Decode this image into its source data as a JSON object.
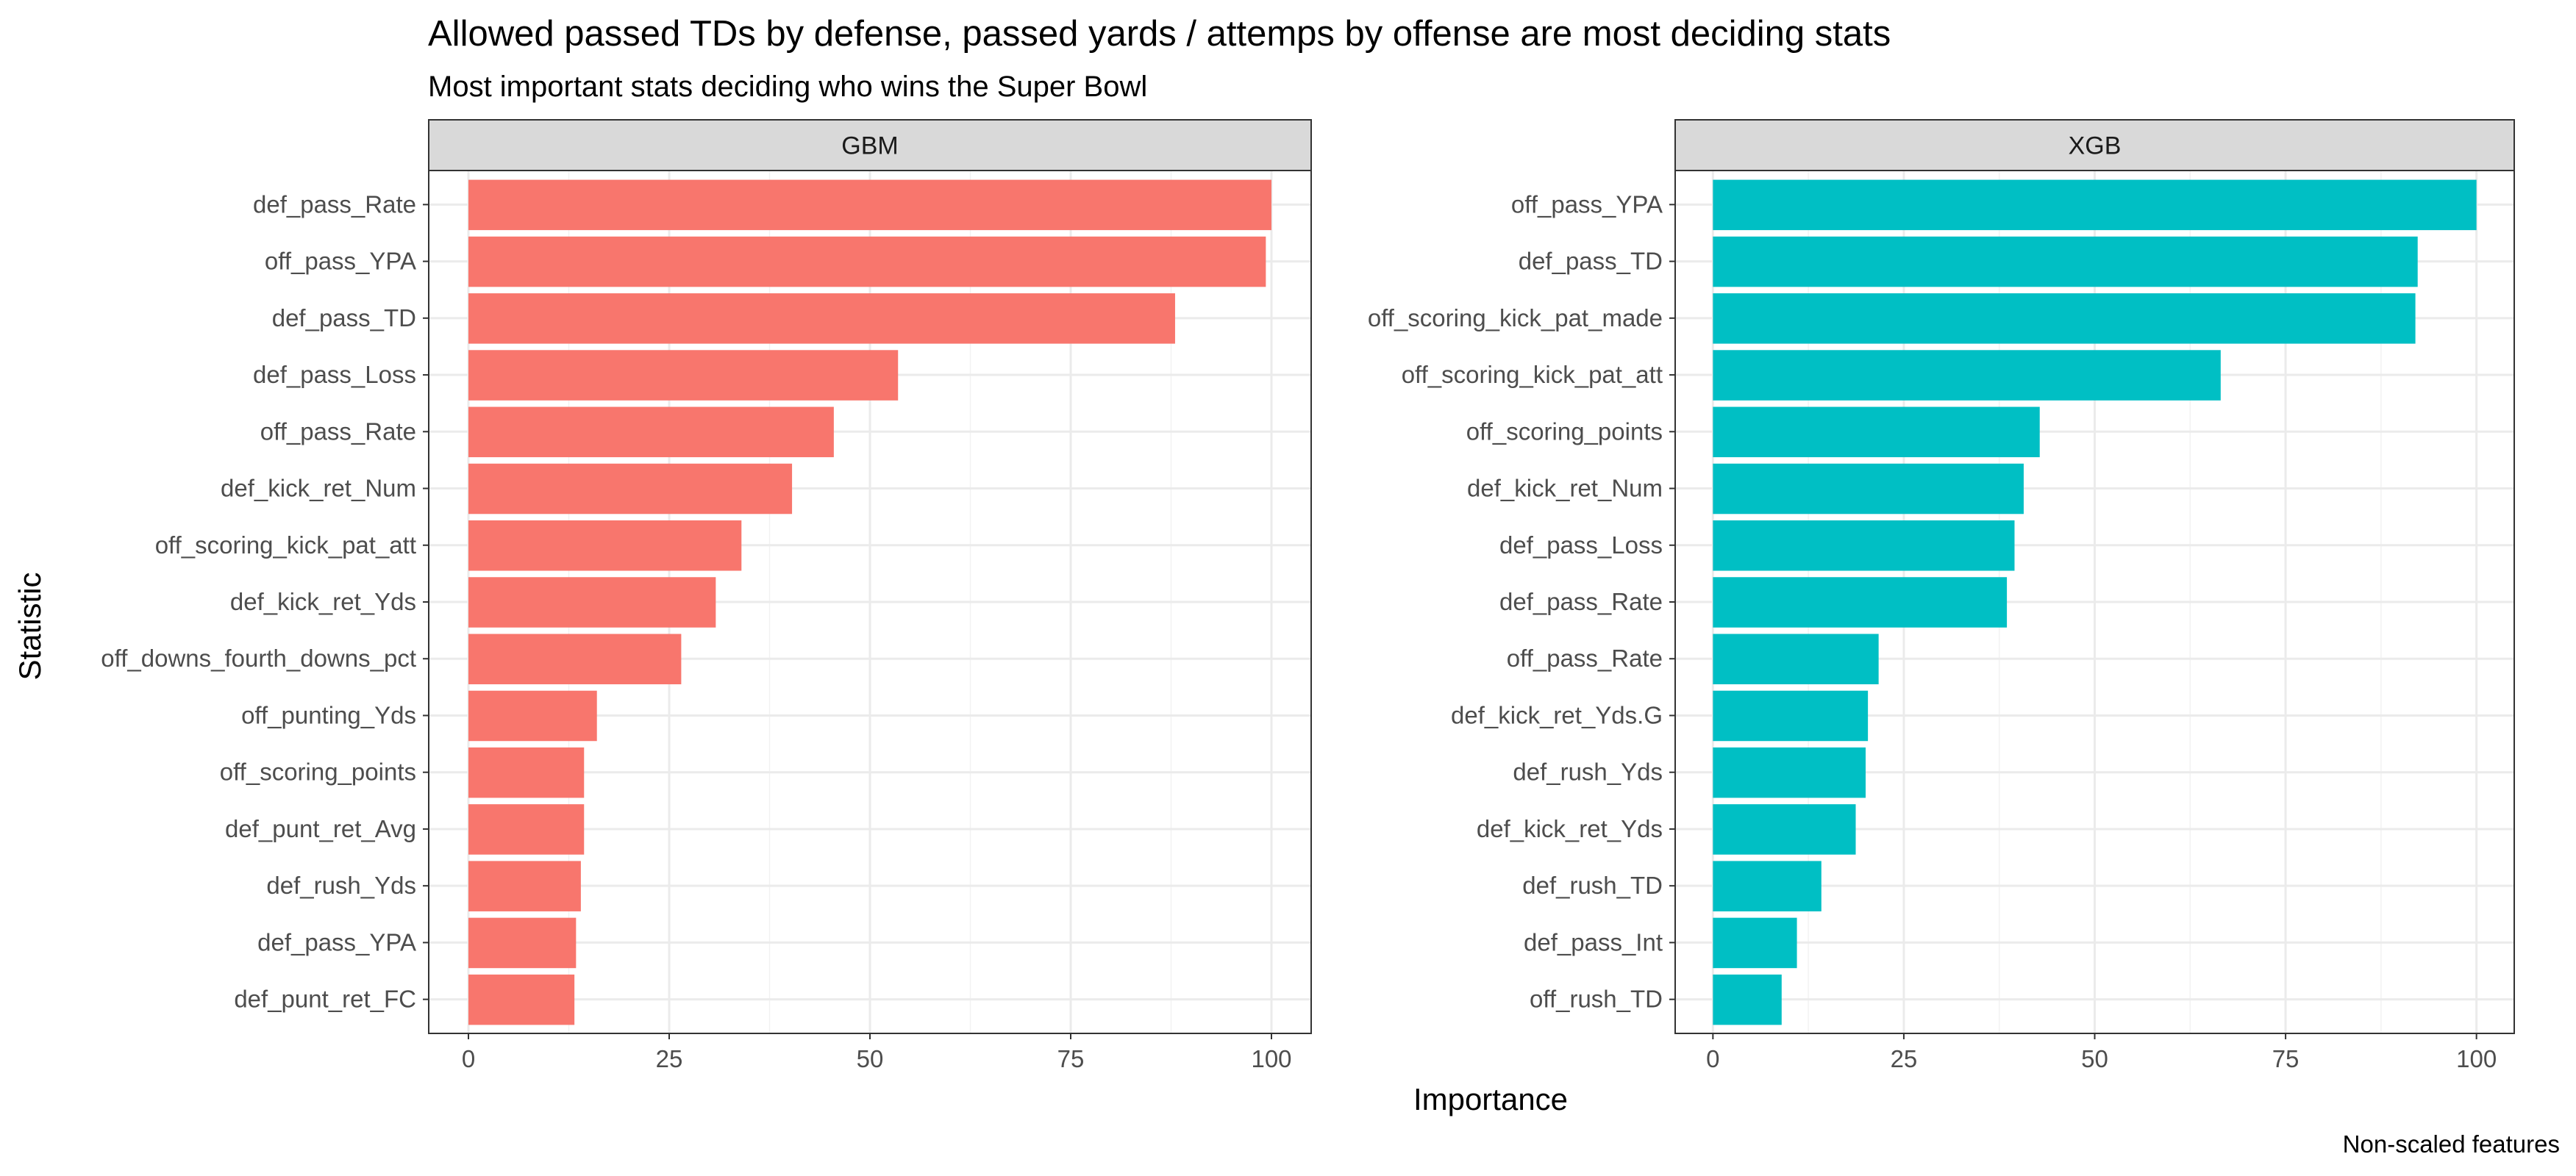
{
  "title": "Allowed passed TDs by defense, passed yards / attemps by offense are most deciding stats",
  "subtitle": "Most important stats deciding who wins the Super Bowl",
  "caption": "Non-scaled features",
  "xlabel": "Importance",
  "ylabel": "Statistic",
  "chart_data": [
    {
      "type": "bar",
      "orientation": "horizontal",
      "panel": "GBM",
      "color": "#F8766D",
      "xlim": [
        0,
        100
      ],
      "xticks": [
        0,
        25,
        50,
        75,
        100
      ],
      "grid": true,
      "categories": [
        "def_pass_Rate",
        "off_pass_YPA",
        "def_pass_TD",
        "def_pass_Loss",
        "off_pass_Rate",
        "def_kick_ret_Num",
        "off_scoring_kick_pat_att",
        "def_kick_ret_Yds",
        "off_downs_fourth_downs_pct",
        "off_punting_Yds",
        "off_scoring_points",
        "def_punt_ret_Avg",
        "def_rush_Yds",
        "def_pass_YPA",
        "def_punt_ret_FC"
      ],
      "values": [
        100,
        99.3,
        88,
        53.5,
        45.5,
        40.3,
        34,
        30.8,
        26.5,
        16,
        14.4,
        14.4,
        14,
        13.4,
        13.2
      ]
    },
    {
      "type": "bar",
      "orientation": "horizontal",
      "panel": "XGB",
      "color": "#00BFC4",
      "xlim": [
        0,
        100
      ],
      "xticks": [
        0,
        25,
        50,
        75,
        100
      ],
      "grid": true,
      "categories": [
        "off_pass_YPA",
        "def_pass_TD",
        "off_scoring_kick_pat_made",
        "off_scoring_kick_pat_att",
        "off_scoring_points",
        "def_kick_ret_Num",
        "def_pass_Loss",
        "def_pass_Rate",
        "off_pass_Rate",
        "def_kick_ret_Yds.G",
        "def_rush_Yds",
        "def_kick_ret_Yds",
        "def_rush_TD",
        "def_pass_Int",
        "off_rush_TD"
      ],
      "values": [
        100,
        92.3,
        92,
        66.5,
        42.8,
        40.7,
        39.5,
        38.5,
        21.7,
        20.3,
        20,
        18.7,
        14.2,
        11,
        9
      ]
    }
  ]
}
